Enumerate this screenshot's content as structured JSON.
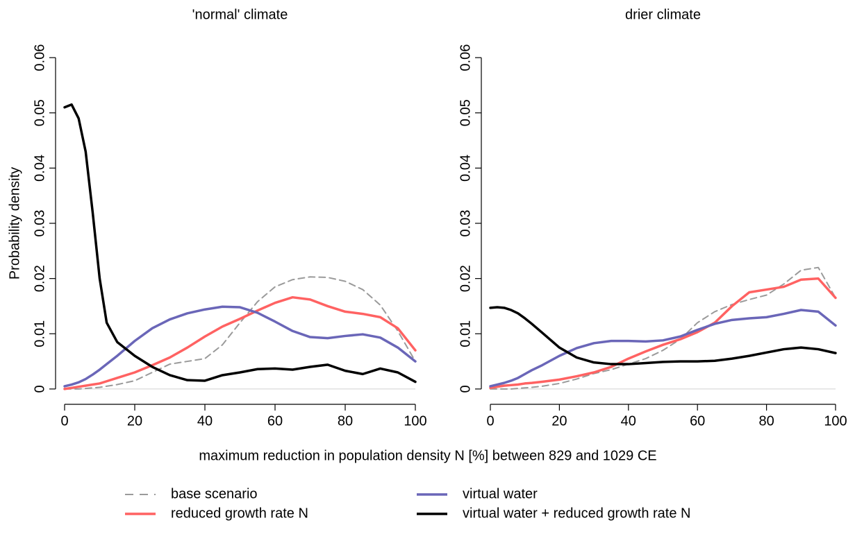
{
  "chart_data": [
    {
      "type": "line",
      "title": "'normal' climate",
      "xlabel": "maximum reduction in population density N [%] between 829 and 1029 CE",
      "ylabel": "Probability density",
      "xlim": [
        0,
        100
      ],
      "ylim": [
        -0.0024,
        0.0624
      ],
      "xticks": [
        0,
        20,
        40,
        60,
        80,
        100
      ],
      "yticks": [
        0,
        0.01,
        0.02,
        0.03,
        0.04,
        0.05,
        0.06
      ],
      "zero_line": true,
      "x": [
        0,
        2,
        4,
        6,
        8,
        10,
        12,
        15,
        20,
        25,
        30,
        35,
        40,
        45,
        50,
        55,
        60,
        65,
        70,
        75,
        80,
        85,
        90,
        95,
        100
      ],
      "series": [
        {
          "name": "base scenario",
          "color": "#9a9a9a",
          "dashed": true,
          "values": [
            0,
            0,
            0,
            0.0001,
            0.0002,
            0.0003,
            0.0005,
            0.0008,
            0.0015,
            0.003,
            0.0045,
            0.005,
            0.0055,
            0.008,
            0.012,
            0.0158,
            0.0185,
            0.0198,
            0.0203,
            0.0202,
            0.0195,
            0.018,
            0.0152,
            0.0105,
            0.005
          ]
        },
        {
          "name": "reduced growth rate N",
          "color": "#ff6262",
          "values": [
            0,
            0.0002,
            0.0004,
            0.0006,
            0.0008,
            0.001,
            0.0014,
            0.002,
            0.003,
            0.0043,
            0.0057,
            0.0075,
            0.0095,
            0.0113,
            0.0127,
            0.0142,
            0.0156,
            0.0166,
            0.0162,
            0.015,
            0.014,
            0.0136,
            0.013,
            0.011,
            0.007
          ]
        },
        {
          "name": "virtual water",
          "color": "#6a66b8",
          "values": [
            0.0005,
            0.0008,
            0.0012,
            0.0018,
            0.0026,
            0.0035,
            0.0045,
            0.006,
            0.0087,
            0.011,
            0.0126,
            0.0137,
            0.0144,
            0.0149,
            0.0148,
            0.0138,
            0.0122,
            0.0105,
            0.0094,
            0.0092,
            0.0096,
            0.0099,
            0.0093,
            0.0075,
            0.005
          ]
        },
        {
          "name": "virtual water + reduced growth rate N",
          "color": "#000000",
          "values": [
            0.051,
            0.0515,
            0.049,
            0.043,
            0.032,
            0.02,
            0.012,
            0.0085,
            0.006,
            0.004,
            0.0025,
            0.0016,
            0.0015,
            0.0025,
            0.003,
            0.0036,
            0.0037,
            0.0035,
            0.004,
            0.0044,
            0.0033,
            0.0027,
            0.0037,
            0.003,
            0.0013
          ]
        }
      ]
    },
    {
      "type": "line",
      "title": "drier climate",
      "xlim": [
        0,
        100
      ],
      "ylim": [
        -0.0024,
        0.0624
      ],
      "xticks": [
        0,
        20,
        40,
        60,
        80,
        100
      ],
      "yticks": [
        0,
        0.01,
        0.02,
        0.03,
        0.04,
        0.05,
        0.06
      ],
      "zero_line": true,
      "x": [
        0,
        2,
        4,
        6,
        8,
        10,
        12,
        15,
        20,
        25,
        30,
        35,
        40,
        45,
        50,
        55,
        60,
        65,
        70,
        75,
        80,
        85,
        90,
        95,
        100
      ],
      "series": [
        {
          "color": "#9a9a9a",
          "dashed": true,
          "values": [
            0,
            0,
            0,
            0,
            0.0001,
            0.0002,
            0.0003,
            0.0005,
            0.001,
            0.0018,
            0.0028,
            0.0035,
            0.0045,
            0.0055,
            0.007,
            0.009,
            0.012,
            0.014,
            0.0153,
            0.0162,
            0.017,
            0.019,
            0.0215,
            0.022,
            0.0165
          ]
        },
        {
          "color": "#ff6262",
          "values": [
            0.0002,
            0.0004,
            0.0006,
            0.0007,
            0.0008,
            0.001,
            0.0011,
            0.0013,
            0.0017,
            0.0023,
            0.003,
            0.004,
            0.0055,
            0.0068,
            0.008,
            0.009,
            0.0103,
            0.012,
            0.015,
            0.0175,
            0.018,
            0.0185,
            0.0198,
            0.02,
            0.0165
          ]
        },
        {
          "color": "#6a66b8",
          "values": [
            0.0005,
            0.0008,
            0.0011,
            0.0015,
            0.002,
            0.0027,
            0.0034,
            0.0043,
            0.006,
            0.0074,
            0.0083,
            0.0087,
            0.0087,
            0.0086,
            0.0088,
            0.0095,
            0.0107,
            0.0118,
            0.0125,
            0.0128,
            0.013,
            0.0136,
            0.0143,
            0.014,
            0.0115
          ]
        },
        {
          "color": "#000000",
          "values": [
            0.0147,
            0.0148,
            0.0147,
            0.0143,
            0.0137,
            0.0128,
            0.0118,
            0.0102,
            0.0075,
            0.0057,
            0.0048,
            0.0045,
            0.0045,
            0.0047,
            0.0049,
            0.005,
            0.005,
            0.0051,
            0.0055,
            0.006,
            0.0066,
            0.0072,
            0.0075,
            0.0072,
            0.0065
          ]
        }
      ]
    }
  ]
}
